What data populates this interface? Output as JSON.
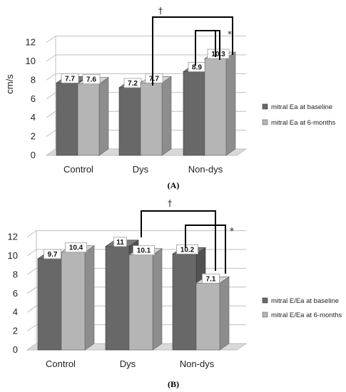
{
  "chart_data": [
    {
      "type": "bar",
      "panel_label": "(A)",
      "ylabel": "cm/s",
      "ylim": [
        0,
        12
      ],
      "yticks": [
        0,
        2,
        4,
        6,
        8,
        10,
        12
      ],
      "grid": true,
      "legend_position": "right",
      "categories": [
        "Control",
        "Dys",
        "Non-dys"
      ],
      "series": [
        {
          "name": "mitral Ea at baseline",
          "values": [
            7.7,
            7.2,
            8.9
          ],
          "color": "#686868"
        },
        {
          "name": "mitral Ea at 6-months",
          "values": [
            7.6,
            7.7,
            10.3
          ],
          "color": "#b5b5b5"
        }
      ],
      "annotations": {
        "dagger": "†",
        "asterisk": "*"
      }
    },
    {
      "type": "bar",
      "panel_label": "(B)",
      "ylabel": "",
      "ylim": [
        0,
        12
      ],
      "yticks": [
        0,
        2,
        4,
        6,
        8,
        10,
        12
      ],
      "grid": true,
      "legend_position": "right",
      "categories": [
        "Control",
        "Dys",
        "Non-dys"
      ],
      "series": [
        {
          "name": "mitral E/Ea at baseline",
          "values": [
            9.7,
            11,
            10.2
          ],
          "color": "#686868"
        },
        {
          "name": "mitral E/Ea at 6-months",
          "values": [
            10.4,
            10.1,
            7.1
          ],
          "color": "#b5b5b5"
        }
      ],
      "annotations": {
        "dagger": "†",
        "asterisk": "*"
      }
    }
  ]
}
